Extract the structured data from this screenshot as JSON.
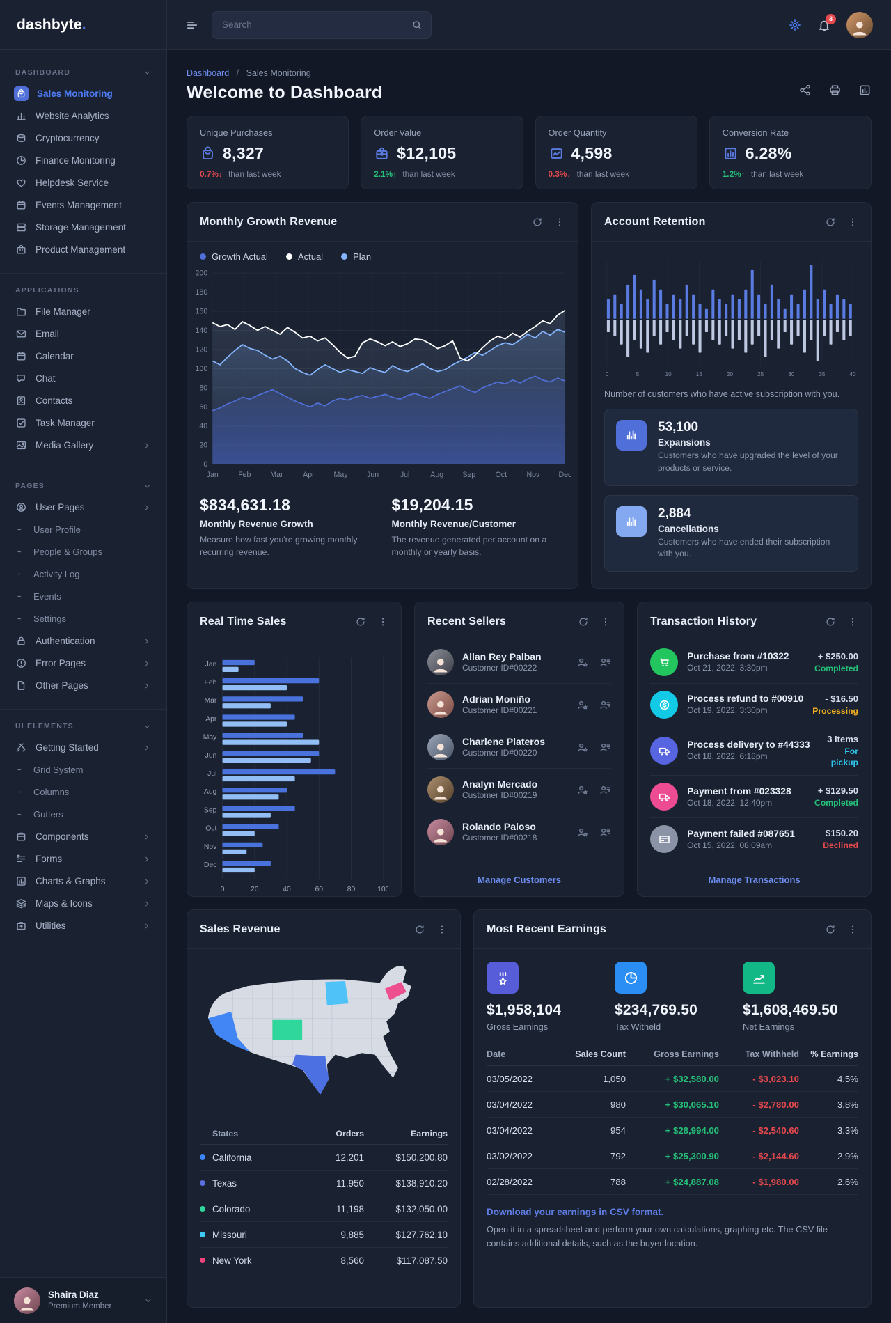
{
  "brand": {
    "name": "dashbyte",
    "dot": "."
  },
  "topbar": {
    "search_placeholder": "Search",
    "bell_badge": "3"
  },
  "sidebar": {
    "sections": [
      {
        "heading": "DASHBOARD",
        "chev": true,
        "items": [
          {
            "label": "Sales Monitoring",
            "icon": "bag",
            "active": true
          },
          {
            "label": "Website Analytics",
            "icon": "bars"
          },
          {
            "label": "Cryptocurrency",
            "icon": "coins"
          },
          {
            "label": "Finance Monitoring",
            "icon": "clock"
          },
          {
            "label": "Helpdesk Service",
            "icon": "heart"
          },
          {
            "label": "Events Management",
            "icon": "calendar"
          },
          {
            "label": "Storage Management",
            "icon": "storage"
          },
          {
            "label": "Product Management",
            "icon": "product"
          }
        ]
      },
      {
        "heading": "APPLICATIONS",
        "chev": false,
        "items": [
          {
            "label": "File Manager",
            "icon": "folder"
          },
          {
            "label": "Email",
            "icon": "mail"
          },
          {
            "label": "Calendar",
            "icon": "calendar"
          },
          {
            "label": "Chat",
            "icon": "chat"
          },
          {
            "label": "Contacts",
            "icon": "contacts"
          },
          {
            "label": "Task Manager",
            "icon": "task"
          },
          {
            "label": "Media Gallery",
            "icon": "media",
            "chevron": true
          }
        ]
      },
      {
        "heading": "PAGES",
        "chev": true,
        "items": [
          {
            "label": "User Pages",
            "icon": "user",
            "chevron": true
          },
          {
            "label": "User Profile",
            "icon": "dash",
            "sub": true
          },
          {
            "label": "People & Groups",
            "icon": "dash",
            "sub": true
          },
          {
            "label": "Activity Log",
            "icon": "dash",
            "sub": true
          },
          {
            "label": "Events",
            "icon": "dash",
            "sub": true
          },
          {
            "label": "Settings",
            "icon": "dash",
            "sub": true
          },
          {
            "label": "Authentication",
            "icon": "lock",
            "chevron": true
          },
          {
            "label": "Error Pages",
            "icon": "alert",
            "chevron": true
          },
          {
            "label": "Other Pages",
            "icon": "file",
            "chevron": true
          }
        ]
      },
      {
        "heading": "UI ELEMENTS",
        "chev": true,
        "items": [
          {
            "label": "Getting Started",
            "icon": "tools",
            "chevron": true
          },
          {
            "label": "Grid System",
            "icon": "dash",
            "sub": true
          },
          {
            "label": "Columns",
            "icon": "dash",
            "sub": true
          },
          {
            "label": "Gutters",
            "icon": "dash",
            "sub": true
          },
          {
            "label": "Components",
            "icon": "package",
            "chevron": true
          },
          {
            "label": "Forms",
            "icon": "forms",
            "chevron": true
          },
          {
            "label": "Charts & Graphs",
            "icon": "report",
            "chevron": true
          },
          {
            "label": "Maps & Icons",
            "icon": "layers",
            "chevron": true
          },
          {
            "label": "Utilities",
            "icon": "utilities",
            "chevron": true
          }
        ]
      }
    ],
    "footer": {
      "name": "Shaira Diaz",
      "role": "Premium Member"
    }
  },
  "header": {
    "breadcrumb": {
      "parent": "Dashboard",
      "sep": "/",
      "current": "Sales Monitoring"
    },
    "title": "Welcome to Dashboard"
  },
  "stats": [
    {
      "label": "Unique Purchases",
      "value": "8,327",
      "icon": "bag",
      "delta": "0.7%",
      "arrow": "↓",
      "down": true,
      "note": "than last week"
    },
    {
      "label": "Order Value",
      "value": "$12,105",
      "icon": "briefcase",
      "delta": "2.1%",
      "arrow": "↑",
      "up": true,
      "note": "than last week"
    },
    {
      "label": "Order Quantity",
      "value": "4,598",
      "icon": "boxwave",
      "delta": "0.3%",
      "arrow": "↓",
      "down": true,
      "note": "than last week"
    },
    {
      "label": "Conversion Rate",
      "value": "6.28%",
      "icon": "boxbars",
      "delta": "1.2%",
      "arrow": "↑",
      "up": true,
      "note": "than last week"
    }
  ],
  "panels": {
    "monthly": {
      "title": "Monthly Growth Revenue"
    },
    "retention": {
      "title": "Account Retention",
      "caption": "Number of customers who have active subscription with you.",
      "cards": [
        {
          "value": "53,100",
          "label": "Expansions",
          "desc": "Customers who have upgraded the level of your products or service.",
          "color": "#506fd9",
          "icon": "barglyph"
        },
        {
          "value": "2,884",
          "label": "Cancellations",
          "desc": "Customers who have ended their subscription with you.",
          "color": "#85a9f0",
          "icon": "barglyph"
        }
      ]
    },
    "realtime": {
      "title": "Real Time Sales"
    },
    "sellers": {
      "title": "Recent Sellers",
      "link": "Manage Customers"
    },
    "transactions": {
      "title": "Transaction History",
      "link": "Manage Transactions"
    },
    "sales_revenue": {
      "title": "Sales Revenue"
    },
    "earnings": {
      "title": "Most Recent Earnings"
    }
  },
  "monthly_footer": [
    {
      "value": "$834,631.18",
      "label": "Monthly Revenue Growth",
      "desc": "Measure how fast you're growing monthly recurring revenue."
    },
    {
      "value": "$19,204.15",
      "label": "Monthly Revenue/Customer",
      "desc": "The revenue generated per account on a monthly or yearly basis."
    }
  ],
  "recent_sellers": {
    "items": [
      {
        "name": "Allan Rey Palban",
        "id": "Customer ID#00222"
      },
      {
        "name": "Adrian Moniño",
        "id": "Customer ID#00221"
      },
      {
        "name": "Charlene Plateros",
        "id": "Customer ID#00220"
      },
      {
        "name": "Analyn Mercado",
        "id": "Customer ID#00219"
      },
      {
        "name": "Rolando Paloso",
        "id": "Customer ID#00218"
      }
    ]
  },
  "transactions": {
    "items": [
      {
        "icon": "cart",
        "icon_bg": "#22c55e",
        "title": "Purchase from #10322",
        "date": "Oct 21, 2022, 3:30pm",
        "amount": "+ $250.00",
        "status": "Completed",
        "status_color": "success"
      },
      {
        "icon": "coin",
        "icon_bg": "#12cae6",
        "title": "Process refund to #00910",
        "date": "Oct 19, 2022, 3:30pm",
        "amount": "- $16.50",
        "status": "Processing",
        "status_color": "warning"
      },
      {
        "icon": "truck",
        "icon_bg": "#5865e0",
        "title": "Process delivery to #44333",
        "date": "Oct 18, 2022, 6:18pm",
        "amount": "3 Items",
        "status": "For pickup",
        "status_color": "info"
      },
      {
        "icon": "truck",
        "icon_bg": "#ed4c92",
        "title": "Payment from #023328",
        "date": "Oct 18, 2022, 12:40pm",
        "amount": "+ $129.50",
        "status": "Completed",
        "status_color": "success"
      },
      {
        "icon": "card",
        "icon_bg": "#8a94a6",
        "title": "Payment failed #087651",
        "date": "Oct 15, 2022, 08:09am",
        "amount": "$150.20",
        "status": "Declined",
        "status_color": "danger"
      }
    ]
  },
  "earnings": {
    "cards": [
      {
        "value": "$1,958,104",
        "label": "Gross Earnings",
        "color": "#575cd8",
        "icon": "award"
      },
      {
        "value": "$234,769.50",
        "label": "Tax Witheld",
        "color": "#2b8ef5",
        "icon": "pie"
      },
      {
        "value": "$1,608,469.50",
        "label": "Net Earnings",
        "color": "#12b886",
        "icon": "linechart"
      }
    ],
    "table": {
      "headers": [
        "Date",
        "Sales Count",
        "Gross Earnings",
        "Tax Withheld",
        "% Earnings"
      ],
      "rows": [
        {
          "date": "03/05/2022",
          "count": "1,050",
          "gross": "+ $32,580.00",
          "tax": "- $3,023.10",
          "pct": "4.5%"
        },
        {
          "date": "03/04/2022",
          "count": "980",
          "gross": "+ $30,065.10",
          "tax": "- $2,780.00",
          "pct": "3.8%"
        },
        {
          "date": "03/04/2022",
          "count": "954",
          "gross": "+ $28,994.00",
          "tax": "- $2,540.60",
          "pct": "3.3%"
        },
        {
          "date": "03/02/2022",
          "count": "792",
          "gross": "+ $25,300.90",
          "tax": "- $2,144.60",
          "pct": "2.9%"
        },
        {
          "date": "02/28/2022",
          "count": "788",
          "gross": "+ $24,887.08",
          "tax": "- $1,980.00",
          "pct": "2.6%"
        }
      ]
    },
    "csv_link": "Download your earnings in CSV format.",
    "csv_desc": "Open it in a spreadsheet and perform your own calculations, graphing etc. The CSV file contains additional details, such as the buyer location."
  },
  "chart_data": [
    {
      "id": "monthly_growth",
      "type": "line",
      "title": "Monthly Growth Revenue",
      "x_labels": [
        "Jan",
        "Feb",
        "Mar",
        "Apr",
        "May",
        "Jun",
        "Jul",
        "Aug",
        "Sep",
        "Oct",
        "Nov",
        "Dec"
      ],
      "ylim": [
        0,
        200
      ],
      "ytick": 20,
      "grid": true,
      "legend_position": "top-left",
      "series": [
        {
          "name": "Growth Actual",
          "color": "#506fd9",
          "values": [
            56,
            59,
            63,
            66,
            70,
            68,
            72,
            75,
            78,
            74,
            70,
            66,
            63,
            60,
            64,
            61,
            66,
            69,
            67,
            70,
            72,
            69,
            71,
            73,
            70,
            68,
            72,
            74,
            71,
            69,
            73,
            76,
            79,
            82,
            78,
            75,
            80,
            83,
            86,
            84,
            88,
            85,
            89,
            92,
            88,
            86,
            90,
            87
          ]
        },
        {
          "name": "Actual",
          "color": "#ffffff",
          "values": [
            148,
            144,
            146,
            141,
            149,
            145,
            140,
            144,
            140,
            136,
            143,
            138,
            132,
            134,
            129,
            132,
            125,
            117,
            111,
            113,
            127,
            131,
            128,
            124,
            128,
            123,
            126,
            131,
            130,
            126,
            121,
            124,
            129,
            111,
            108,
            114,
            122,
            129,
            134,
            131,
            137,
            133,
            139,
            144,
            150,
            147,
            156,
            161
          ]
        },
        {
          "name": "Plan",
          "color": "#85b6ff",
          "values": [
            108,
            104,
            112,
            119,
            125,
            121,
            119,
            114,
            110,
            113,
            108,
            100,
            96,
            93,
            99,
            104,
            100,
            96,
            99,
            97,
            95,
            101,
            98,
            96,
            103,
            99,
            97,
            101,
            105,
            100,
            97,
            99,
            104,
            108,
            112,
            117,
            114,
            119,
            124,
            127,
            125,
            130,
            136,
            132,
            139,
            135,
            141,
            138
          ]
        }
      ]
    },
    {
      "id": "account_retention",
      "type": "bar",
      "title": "Account Retention",
      "x_ticks": [
        "0",
        "5",
        "10",
        "15",
        "20",
        "25",
        "30",
        "35",
        "40"
      ],
      "xlim": [
        0,
        40
      ],
      "colors": {
        "up": "#5a7ce2",
        "down": "#cdd7f0"
      },
      "up": [
        4,
        5,
        3,
        7,
        9,
        6,
        4,
        8,
        6,
        3,
        5,
        4,
        7,
        5,
        3,
        2,
        6,
        4,
        3,
        5,
        4,
        6,
        10,
        5,
        3,
        7,
        4,
        2,
        5,
        3,
        6,
        11,
        4,
        6,
        3,
        5,
        4,
        3
      ],
      "down": [
        3,
        4,
        6,
        9,
        5,
        7,
        8,
        4,
        6,
        3,
        5,
        7,
        4,
        6,
        8,
        3,
        5,
        6,
        4,
        7,
        5,
        8,
        6,
        4,
        9,
        5,
        7,
        3,
        6,
        4,
        8,
        5,
        10,
        4,
        6,
        3,
        5,
        4
      ]
    },
    {
      "id": "real_time_sales",
      "type": "bar",
      "orientation": "horizontal",
      "title": "Real Time Sales",
      "categories": [
        "Jan",
        "Feb",
        "Mar",
        "Apr",
        "May",
        "Jun",
        "Jul",
        "Aug",
        "Sep",
        "Oct",
        "Nov",
        "Dec"
      ],
      "xlim": [
        0,
        100
      ],
      "x_ticks": [
        "0",
        "20",
        "40",
        "60",
        "80",
        "100"
      ],
      "series": [
        {
          "name": "current",
          "color": "#4a72dd",
          "values": [
            20,
            60,
            50,
            45,
            50,
            60,
            70,
            40,
            45,
            35,
            25,
            30
          ]
        },
        {
          "name": "previous",
          "color": "#93bdf5",
          "values": [
            10,
            40,
            30,
            40,
            60,
            55,
            45,
            35,
            30,
            20,
            15,
            20
          ]
        }
      ]
    },
    {
      "id": "sales_by_state",
      "type": "table",
      "title": "Sales Revenue",
      "columns": [
        "States",
        "Orders",
        "Earnings"
      ],
      "rows": [
        {
          "name": "California",
          "color": "#3b86f7",
          "orders": "12,201",
          "earnings": "$150,200.80"
        },
        {
          "name": "Texas",
          "color": "#5a6fe0",
          "orders": "11,950",
          "earnings": "$138,910.20"
        },
        {
          "name": "Colorado",
          "color": "#2fd79c",
          "orders": "11,198",
          "earnings": "$132,050.00"
        },
        {
          "name": "Missouri",
          "color": "#3ec9f5",
          "orders": "9,885",
          "earnings": "$127,762.10"
        },
        {
          "name": "New York",
          "color": "#f0437e",
          "orders": "8,560",
          "earnings": "$117,087.50"
        }
      ]
    }
  ]
}
